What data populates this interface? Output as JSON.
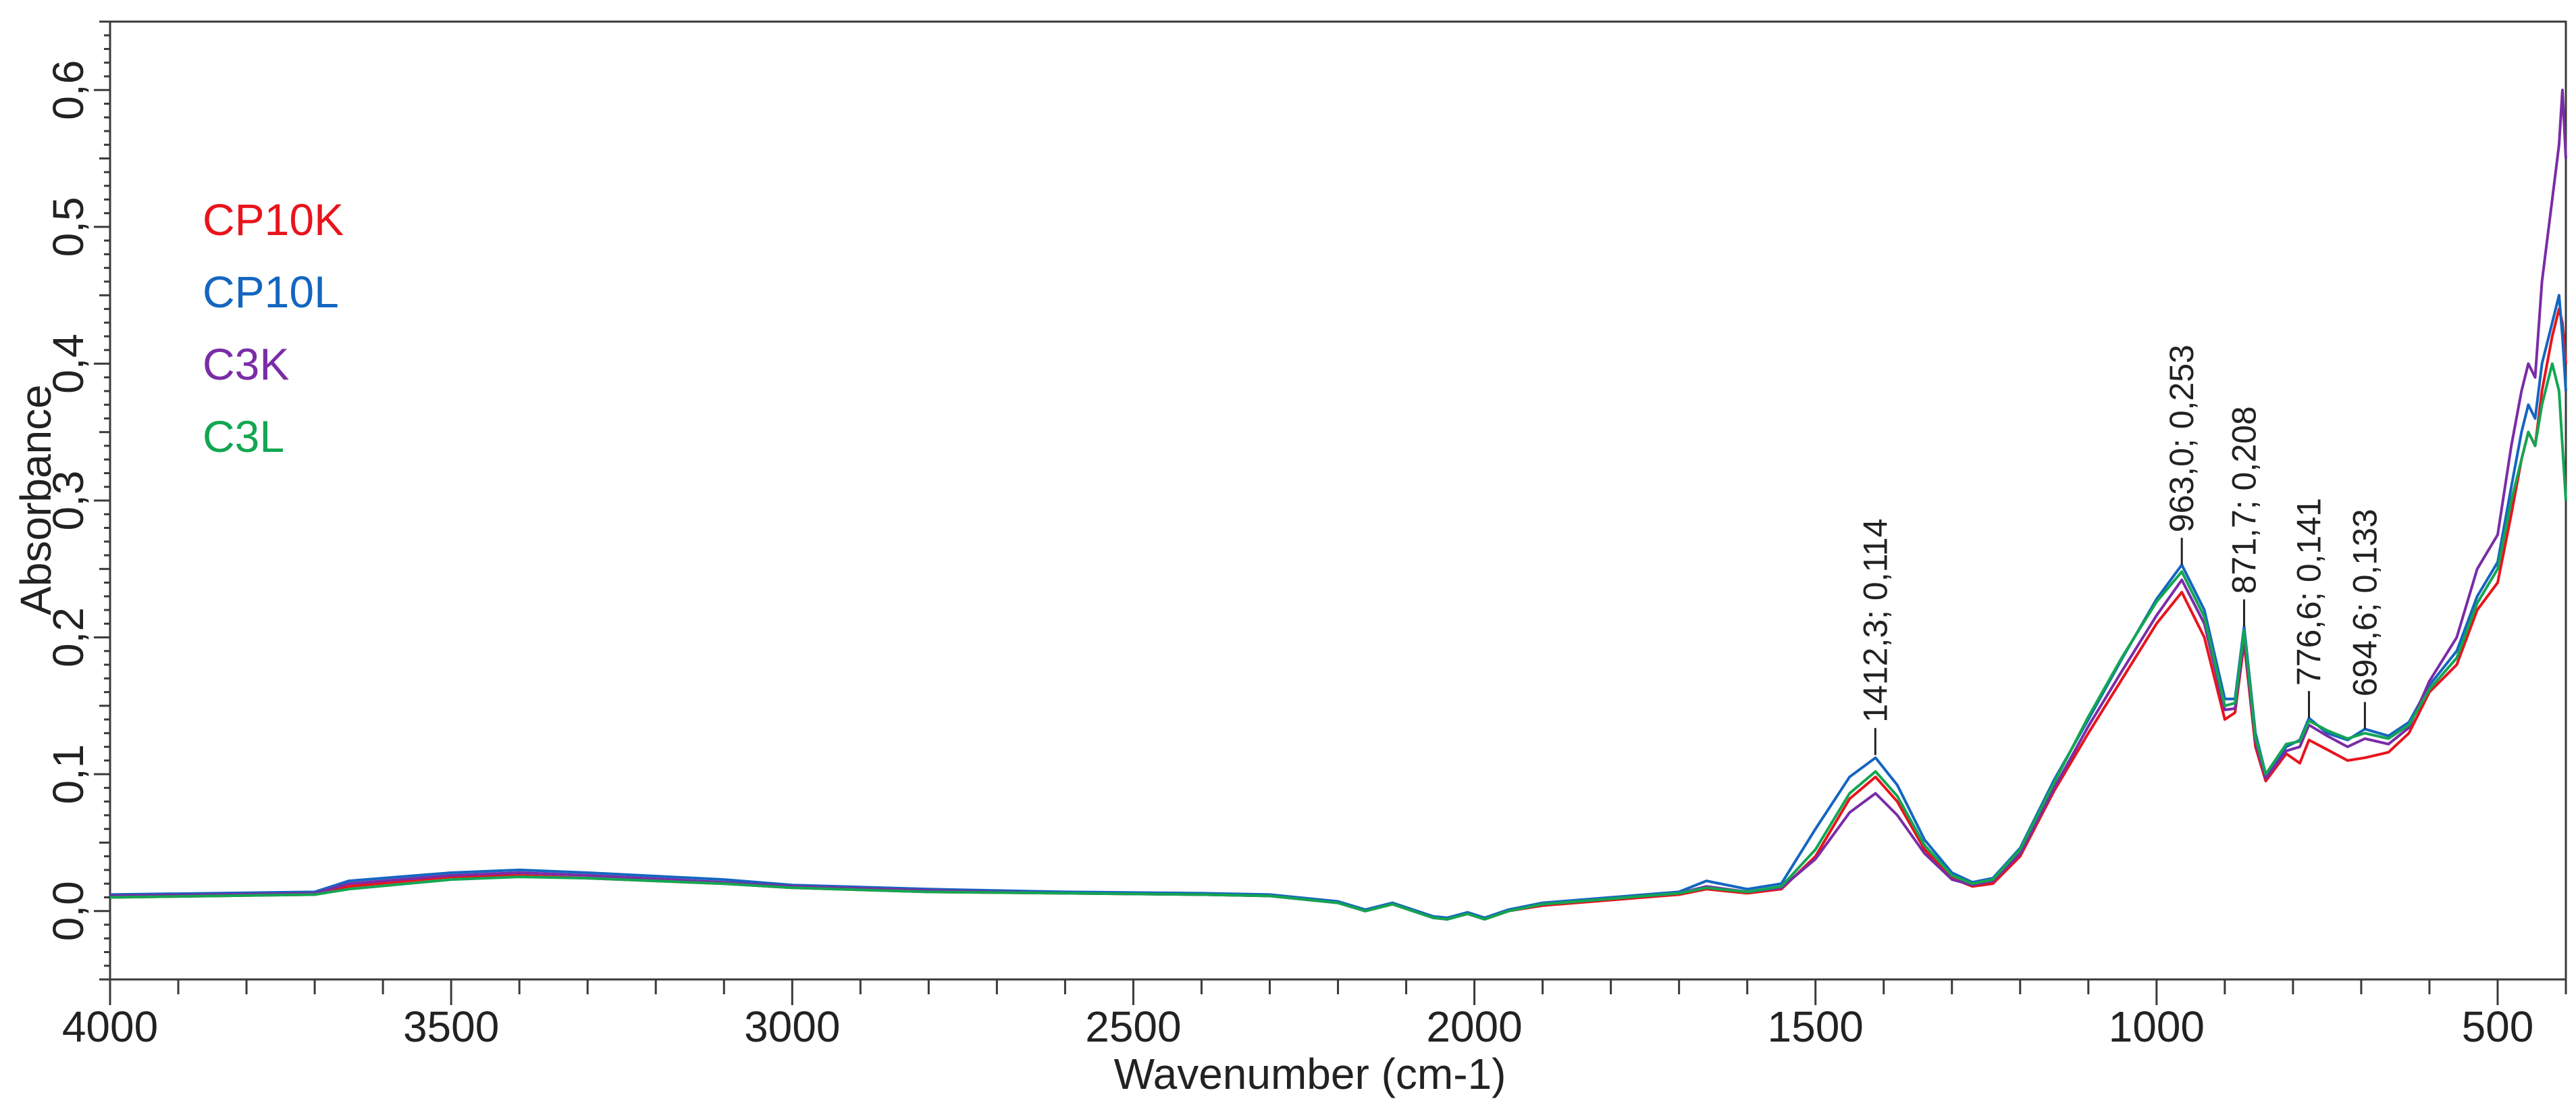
{
  "chart_data": {
    "type": "line",
    "xlabel": "Wavenumber (cm-1)",
    "ylabel": "Absorbance",
    "xlim": [
      4000,
      400
    ],
    "ylim": [
      -0.05,
      0.65
    ],
    "x_ticks": [
      4000,
      3500,
      3000,
      2500,
      2000,
      1500,
      1000,
      500
    ],
    "x_tick_labels": [
      "4000",
      "3500",
      "3000",
      "2500",
      "2000",
      "1500",
      "1000",
      "500"
    ],
    "y_ticks": [
      0.0,
      0.1,
      0.2,
      0.3,
      0.4,
      0.5,
      0.6
    ],
    "y_tick_labels": [
      "0,0",
      "0,1",
      "0,2",
      "0,3",
      "0,4",
      "0,5",
      "0,6"
    ],
    "grid": false,
    "legend_position": "top-left",
    "x": [
      4000,
      3700,
      3650,
      3500,
      3400,
      3300,
      3100,
      3000,
      2800,
      2600,
      2400,
      2300,
      2200,
      2160,
      2120,
      2060,
      2040,
      2010,
      1985,
      1950,
      1900,
      1800,
      1700,
      1660,
      1600,
      1550,
      1500,
      1450,
      1412,
      1380,
      1340,
      1300,
      1270,
      1240,
      1200,
      1150,
      1100,
      1050,
      1000,
      963,
      930,
      900,
      885,
      871.7,
      855,
      840,
      810,
      790,
      776.6,
      750,
      720,
      694.6,
      660,
      630,
      600,
      560,
      530,
      500,
      480,
      465,
      455,
      445,
      435,
      420,
      410,
      405,
      400
    ],
    "series": [
      {
        "name": "CP10K",
        "color": "#e8141c",
        "values": [
          0.01,
          0.012,
          0.018,
          0.025,
          0.026,
          0.024,
          0.02,
          0.017,
          0.014,
          0.013,
          0.012,
          0.011,
          0.006,
          0.0,
          0.005,
          -0.005,
          -0.006,
          -0.002,
          -0.006,
          0.0,
          0.004,
          0.008,
          0.012,
          0.016,
          0.013,
          0.016,
          0.04,
          0.082,
          0.098,
          0.08,
          0.045,
          0.024,
          0.018,
          0.02,
          0.04,
          0.088,
          0.13,
          0.17,
          0.21,
          0.233,
          0.2,
          0.14,
          0.145,
          0.196,
          0.12,
          0.095,
          0.115,
          0.108,
          0.125,
          0.118,
          0.11,
          0.112,
          0.116,
          0.13,
          0.16,
          0.18,
          0.22,
          0.24,
          0.29,
          0.33,
          0.35,
          0.34,
          0.38,
          0.42,
          0.44,
          0.43,
          0.4
        ]
      },
      {
        "name": "CP10L",
        "color": "#1466c0",
        "values": [
          0.012,
          0.014,
          0.022,
          0.028,
          0.03,
          0.028,
          0.023,
          0.019,
          0.016,
          0.014,
          0.013,
          0.012,
          0.007,
          0.001,
          0.006,
          -0.004,
          -0.005,
          -0.001,
          -0.005,
          0.001,
          0.006,
          0.01,
          0.014,
          0.022,
          0.016,
          0.02,
          0.06,
          0.098,
          0.112,
          0.092,
          0.052,
          0.028,
          0.021,
          0.024,
          0.046,
          0.096,
          0.14,
          0.185,
          0.228,
          0.253,
          0.22,
          0.155,
          0.155,
          0.208,
          0.13,
          0.1,
          0.12,
          0.125,
          0.141,
          0.13,
          0.125,
          0.133,
          0.128,
          0.138,
          0.165,
          0.19,
          0.23,
          0.255,
          0.31,
          0.35,
          0.37,
          0.36,
          0.4,
          0.43,
          0.45,
          0.42,
          0.38
        ]
      },
      {
        "name": "C3K",
        "color": "#7a2ca6",
        "values": [
          0.011,
          0.013,
          0.02,
          0.026,
          0.028,
          0.026,
          0.021,
          0.018,
          0.015,
          0.013,
          0.012,
          0.011,
          0.006,
          0.0,
          0.005,
          -0.005,
          -0.006,
          -0.002,
          -0.006,
          0.0,
          0.005,
          0.009,
          0.013,
          0.018,
          0.014,
          0.017,
          0.038,
          0.072,
          0.086,
          0.07,
          0.042,
          0.023,
          0.019,
          0.022,
          0.042,
          0.09,
          0.135,
          0.176,
          0.216,
          0.242,
          0.21,
          0.147,
          0.148,
          0.2,
          0.124,
          0.097,
          0.117,
          0.12,
          0.136,
          0.128,
          0.12,
          0.126,
          0.122,
          0.134,
          0.168,
          0.2,
          0.25,
          0.275,
          0.34,
          0.38,
          0.4,
          0.39,
          0.46,
          0.52,
          0.56,
          0.6,
          0.55
        ]
      },
      {
        "name": "C3L",
        "color": "#13a652",
        "values": [
          0.01,
          0.012,
          0.016,
          0.023,
          0.025,
          0.024,
          0.02,
          0.017,
          0.014,
          0.013,
          0.012,
          0.011,
          0.006,
          0.0,
          0.005,
          -0.005,
          -0.006,
          -0.002,
          -0.006,
          0.0,
          0.005,
          0.009,
          0.013,
          0.017,
          0.014,
          0.018,
          0.045,
          0.086,
          0.102,
          0.084,
          0.048,
          0.026,
          0.02,
          0.023,
          0.045,
          0.094,
          0.142,
          0.186,
          0.226,
          0.248,
          0.215,
          0.15,
          0.152,
          0.205,
          0.127,
          0.1,
          0.122,
          0.124,
          0.139,
          0.132,
          0.126,
          0.13,
          0.126,
          0.136,
          0.162,
          0.185,
          0.225,
          0.25,
          0.3,
          0.33,
          0.35,
          0.34,
          0.37,
          0.4,
          0.38,
          0.34,
          0.3
        ]
      }
    ],
    "annotations": [
      {
        "text": "1412,3; 0,114",
        "x": 1412.3,
        "y": 0.114
      },
      {
        "text": "963,0; 0,253",
        "x": 963.0,
        "y": 0.253
      },
      {
        "text": "871,7; 0,208",
        "x": 871.7,
        "y": 0.208
      },
      {
        "text": "776,6; 0,141",
        "x": 776.6,
        "y": 0.141
      },
      {
        "text": "694,6; 0,133",
        "x": 694.6,
        "y": 0.133
      }
    ]
  }
}
